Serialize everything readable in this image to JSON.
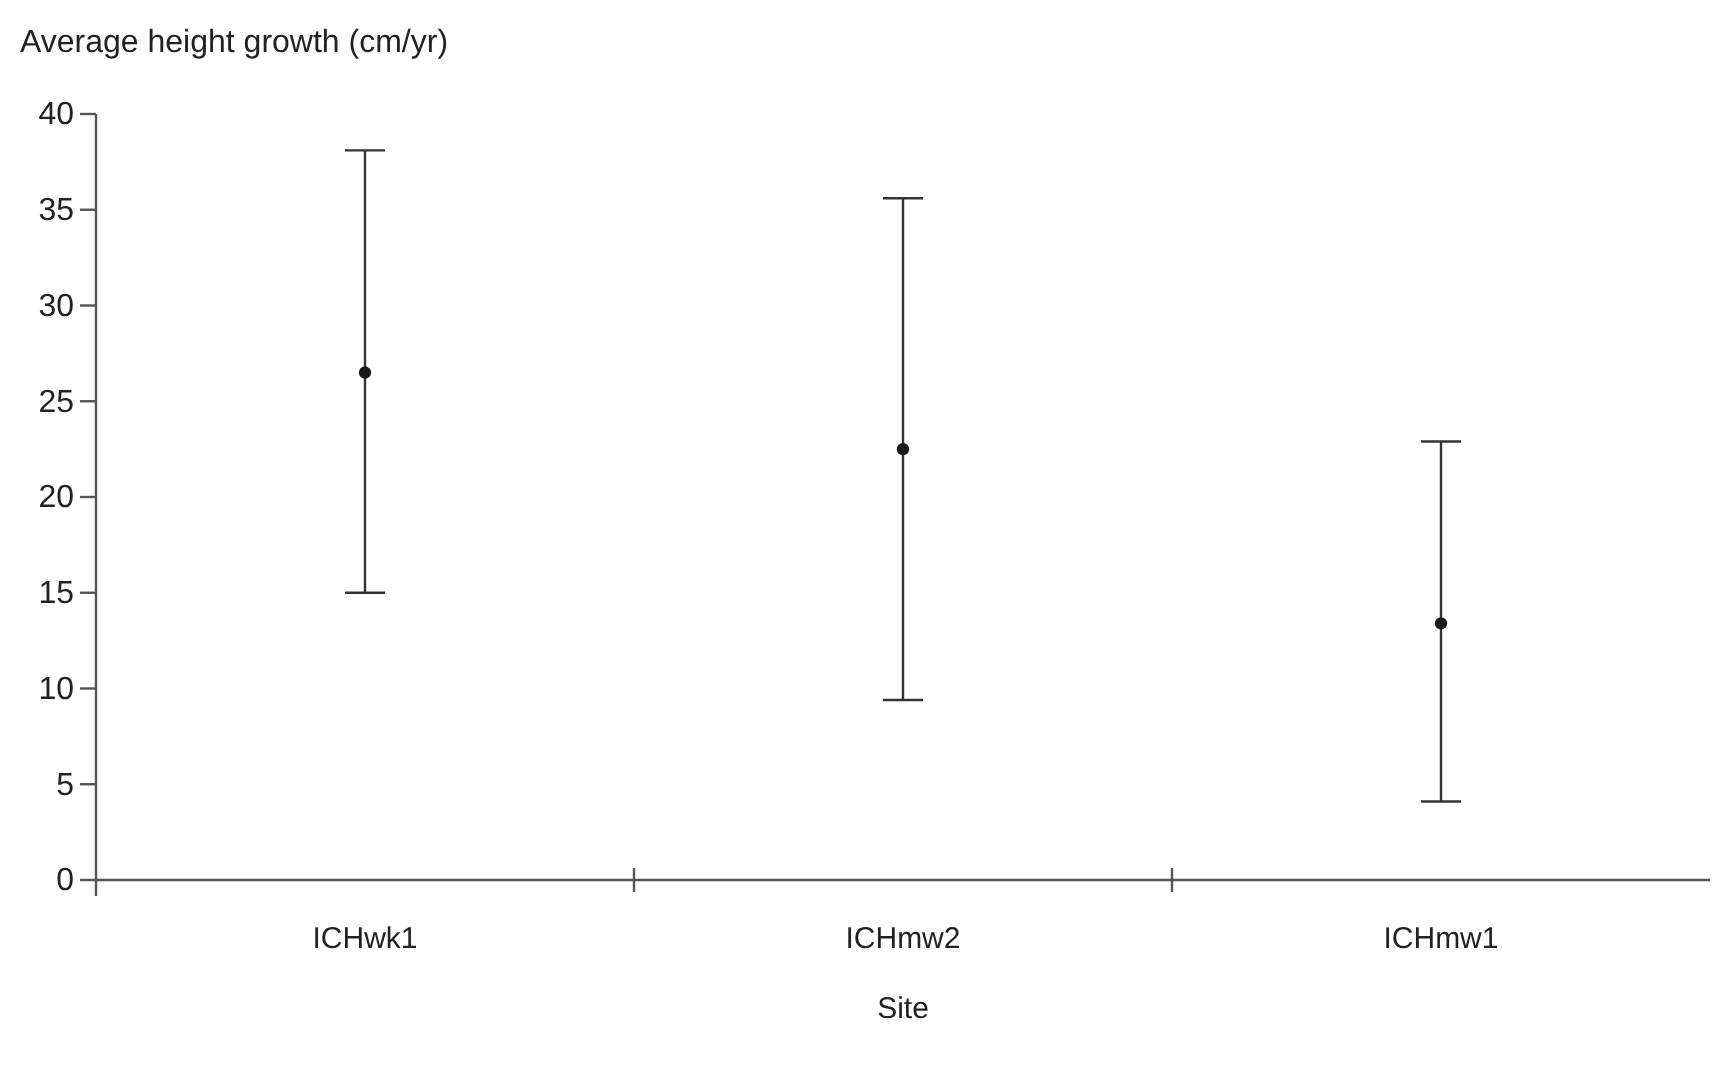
{
  "chart_data": {
    "type": "scatter",
    "ylabel": "Average height growth (cm/yr)",
    "xlabel": "Site",
    "categories": [
      "ICHwk1",
      "ICHmw2",
      "ICHmw1"
    ],
    "values": [
      26.5,
      22.5,
      13.4
    ],
    "errors": [
      [
        15.0,
        38.1
      ],
      [
        9.4,
        35.6
      ],
      [
        4.1,
        22.9
      ]
    ],
    "color": "#1a1a1a",
    "marker": "circle",
    "ylim": [
      0,
      40
    ],
    "yticks": [
      0,
      5,
      10,
      15,
      20,
      25,
      30,
      35,
      40
    ],
    "grid": false
  }
}
